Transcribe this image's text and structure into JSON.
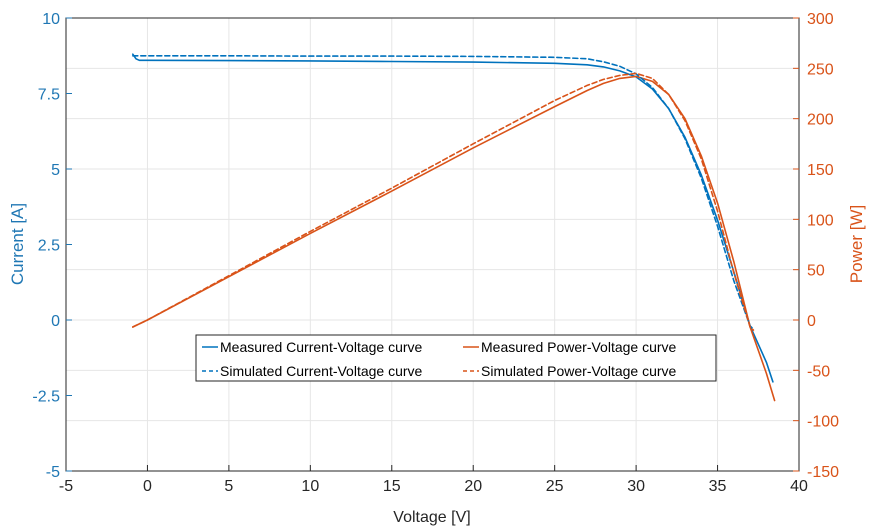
{
  "chart_data": {
    "type": "line",
    "xlabel": "Voltage [V]",
    "ylabel_left": "Current [A]",
    "ylabel_right": "Power [W]",
    "xlim": [
      -5,
      40
    ],
    "ylim_left": [
      -5,
      10
    ],
    "ylim_right": [
      -150,
      300
    ],
    "x_ticks": [
      "-5",
      "0",
      "5",
      "10",
      "15",
      "20",
      "25",
      "30",
      "35",
      "40"
    ],
    "y_left_ticks": [
      "-5",
      "-2.5",
      "0",
      "2.5",
      "5",
      "7.5",
      "10"
    ],
    "y_right_ticks": [
      "-150",
      "-100",
      "-50",
      "0",
      "50",
      "100",
      "150",
      "200",
      "250",
      "300"
    ],
    "grid": true,
    "legend_position": "lower-center",
    "colors": {
      "current": "#0072bd",
      "power": "#d95319",
      "axis_left": "#1f77b4",
      "axis_right": "#d95319"
    },
    "series": [
      {
        "name": "Measured Current-Voltage curve",
        "axis": "left",
        "style": "solid",
        "color": "#0072bd",
        "x": [
          -0.9,
          -0.7,
          -0.5,
          0,
          5,
          10,
          15,
          20,
          25,
          27,
          28,
          29,
          30,
          31,
          32,
          33,
          34,
          35,
          36,
          37,
          38,
          38.4
        ],
        "y": [
          8.8,
          8.65,
          8.6,
          8.6,
          8.59,
          8.58,
          8.56,
          8.54,
          8.5,
          8.45,
          8.38,
          8.25,
          8.05,
          7.65,
          7.0,
          6.05,
          4.8,
          3.3,
          1.6,
          -0.2,
          -1.4,
          -2.05
        ]
      },
      {
        "name": "Measured Power-Voltage curve",
        "axis": "right",
        "style": "solid",
        "color": "#d95319",
        "x": [
          -0.9,
          0,
          5,
          10,
          15,
          20,
          25,
          27,
          28,
          29,
          30,
          31,
          32,
          33,
          34,
          35,
          36,
          37,
          38,
          38.5
        ],
        "y": [
          -7,
          0,
          43,
          86,
          128,
          171,
          212,
          228,
          235,
          240,
          242,
          237,
          224,
          200,
          163,
          116,
          58,
          -7,
          -53,
          -80
        ]
      },
      {
        "name": "Simulated Current-Voltage curve",
        "axis": "left",
        "style": "dashed",
        "color": "#0072bd",
        "x": [
          -0.9,
          0,
          5,
          10,
          15,
          20,
          25,
          27,
          28,
          29,
          30,
          31,
          32,
          33,
          34,
          35,
          36,
          37,
          37.2
        ],
        "y": [
          8.75,
          8.75,
          8.75,
          8.74,
          8.74,
          8.73,
          8.7,
          8.65,
          8.55,
          8.4,
          8.15,
          7.7,
          7.0,
          6.0,
          4.7,
          3.1,
          1.3,
          -0.2,
          -0.3
        ]
      },
      {
        "name": "Simulated Power-Voltage curve",
        "axis": "right",
        "style": "dashed",
        "color": "#d95319",
        "x": [
          -0.9,
          0,
          5,
          10,
          15,
          20,
          25,
          27,
          28,
          29,
          30,
          31,
          32,
          33,
          34,
          35,
          36,
          37,
          37.2
        ],
        "y": [
          -7,
          0,
          44,
          88,
          131,
          175,
          218,
          233,
          239,
          243,
          245,
          240,
          224,
          198,
          160,
          108,
          47,
          -7,
          -10
        ]
      }
    ]
  }
}
